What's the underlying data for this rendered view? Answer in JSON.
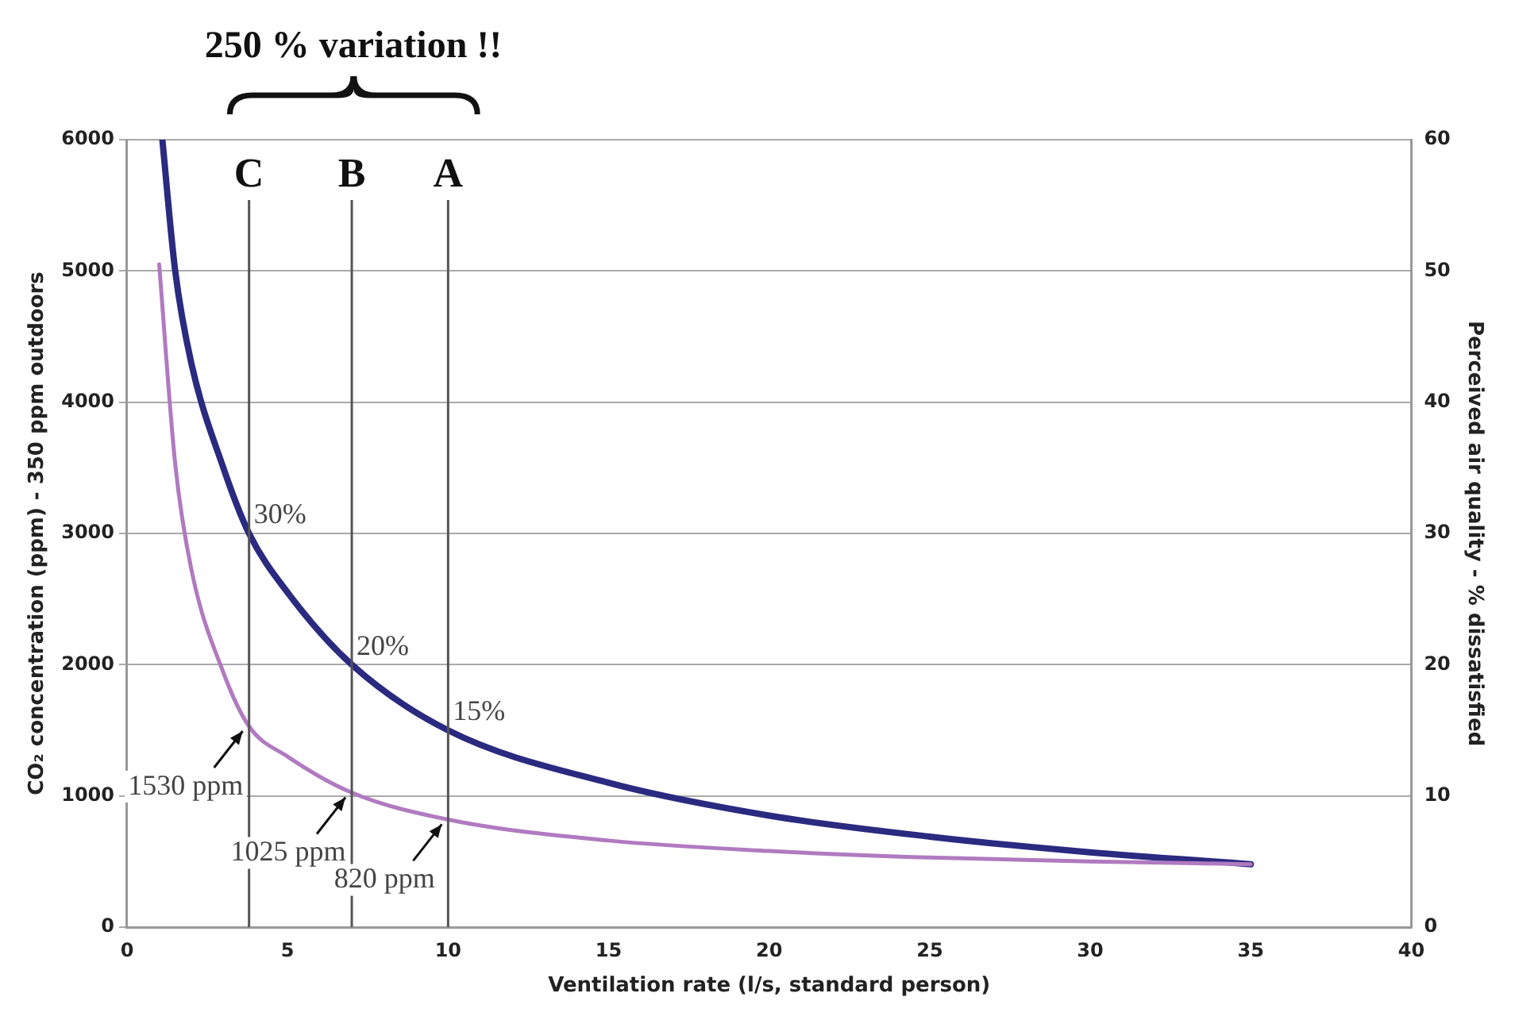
{
  "chart_data": {
    "type": "line",
    "title": "250 % variation !!",
    "xlabel": "Ventilation rate (l/s, standard person)",
    "ylabel": "CO₂ concentration (ppm) - 350 ppm outdoors",
    "y2label": "Perceived air quality - % dissatisfied",
    "xlim": [
      0,
      40
    ],
    "xticks": [
      0,
      5,
      10,
      15,
      20,
      25,
      30,
      35,
      40
    ],
    "ylim": [
      0,
      6000
    ],
    "yticks": [
      0,
      1000,
      2000,
      3000,
      4000,
      5000,
      6000
    ],
    "y2lim": [
      0,
      60
    ],
    "y2ticks": [
      0,
      10,
      20,
      30,
      40,
      50,
      60
    ],
    "grid": "y",
    "legend": false,
    "marker": "none",
    "line_style": "solid",
    "series": [
      {
        "color": "#b07ac0",
        "x": [
          1,
          1.5,
          2,
          3,
          3.8,
          5,
          7,
          10,
          15,
          20,
          25,
          30,
          35
        ],
        "values": [
          5050,
          3530,
          2730,
          1940,
          1530,
          1300,
          1025,
          820,
          660,
          580,
          530,
          500,
          480
        ],
        "value_labels": [
          null,
          null,
          null,
          null,
          "1530 ppm",
          null,
          "1025 ppm",
          "820 ppm",
          null,
          null,
          null,
          null,
          null
        ]
      },
      {
        "color": "#2a2a80",
        "axis": "y2",
        "x": [
          1.1,
          1.5,
          2,
          3,
          3.8,
          5,
          7,
          10,
          15,
          20,
          25,
          30,
          35
        ],
        "values": [
          60,
          50,
          43,
          35,
          30,
          25.5,
          20,
          15,
          11,
          8.5,
          6.9,
          5.7,
          4.8
        ],
        "value_labels": [
          null,
          null,
          null,
          null,
          "30%",
          null,
          "20%",
          "15%",
          null,
          null,
          null,
          null,
          null
        ]
      }
    ],
    "ref_lines": [
      {
        "axis": "x",
        "value": 3.8,
        "label": "C",
        "color": "#555555"
      },
      {
        "axis": "x",
        "value": 7,
        "label": "B",
        "color": "#555555"
      },
      {
        "axis": "x",
        "value": 10,
        "label": "A",
        "color": "#555555"
      }
    ]
  }
}
